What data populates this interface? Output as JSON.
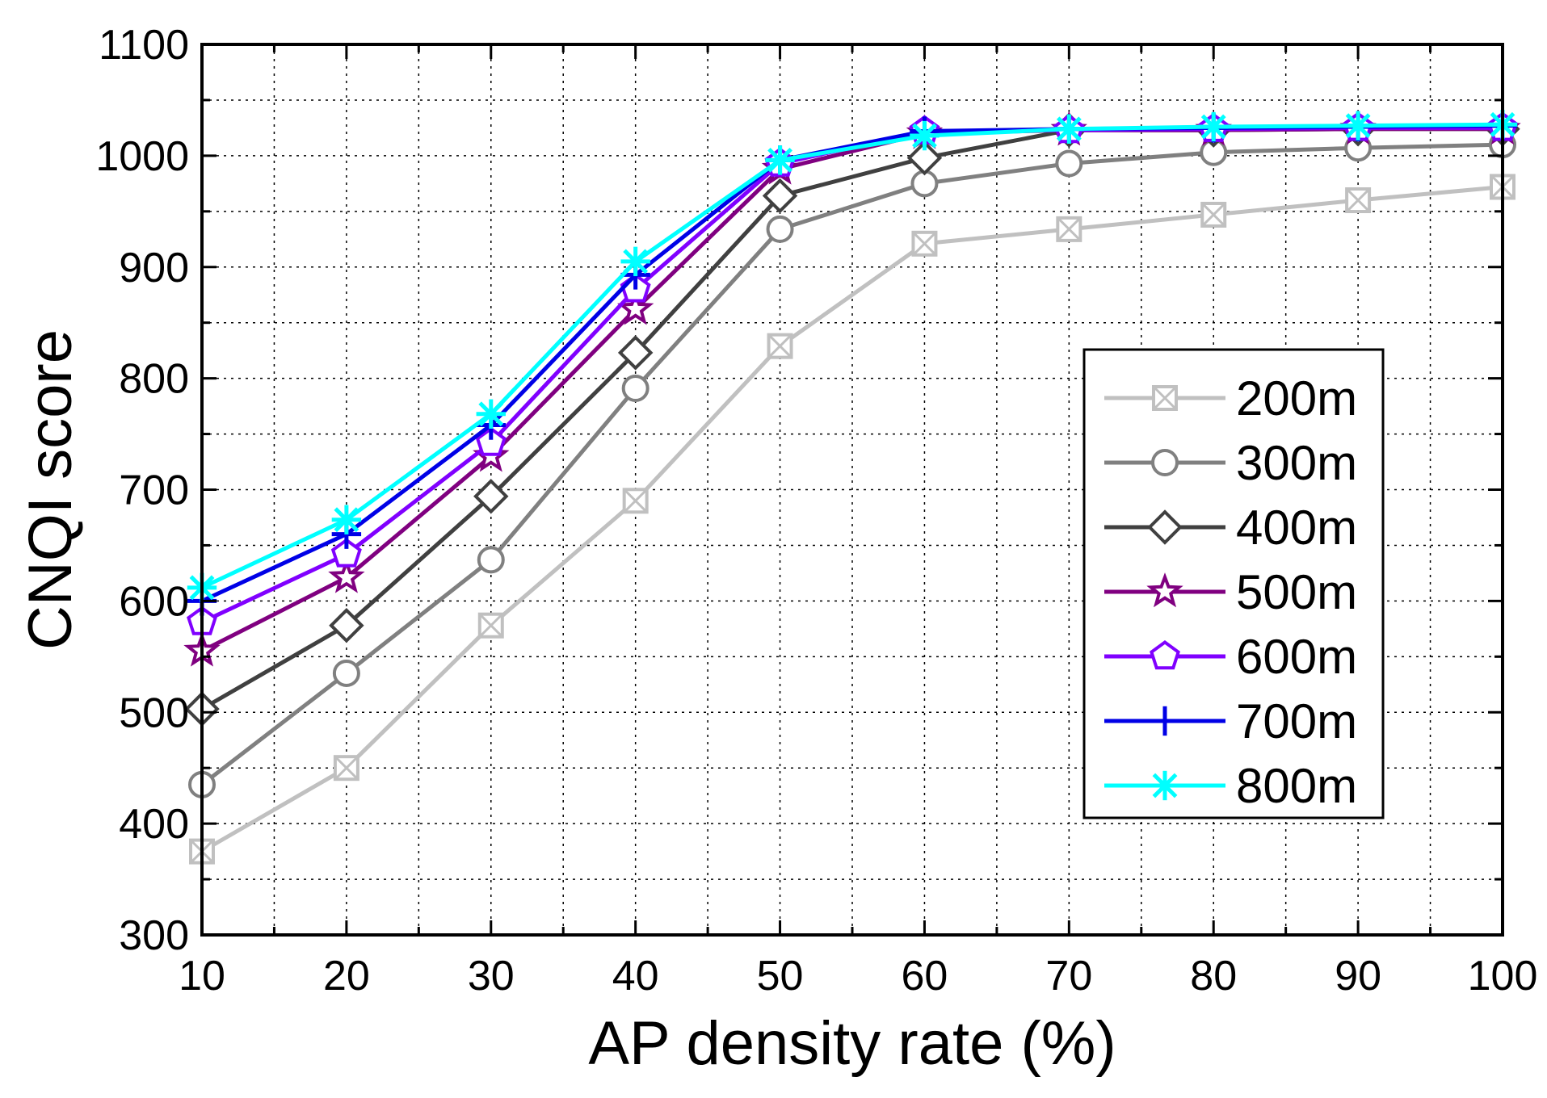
{
  "chart_data": {
    "type": "line",
    "title": "",
    "xlabel": "AP density rate (%)",
    "ylabel": "CNQI score",
    "x": [
      10,
      20,
      30,
      40,
      50,
      60,
      70,
      80,
      90,
      100
    ],
    "xlim": [
      10,
      100
    ],
    "ylim": [
      300,
      1100
    ],
    "xticks": [
      "10",
      "20",
      "30",
      "40",
      "50",
      "60",
      "70",
      "80",
      "90",
      "100"
    ],
    "yticks": [
      "300",
      "400",
      "500",
      "600",
      "700",
      "800",
      "900",
      "1000",
      "1100"
    ],
    "grid": true,
    "legend_position": "right",
    "series": [
      {
        "name": "200m",
        "color": "#c0c0c0",
        "marker": "square-x",
        "values": [
          375,
          450,
          578,
          690,
          829,
          921,
          934,
          947,
          960,
          972
        ]
      },
      {
        "name": "300m",
        "color": "#808080",
        "marker": "circle",
        "values": [
          435,
          535,
          637,
          791,
          934,
          975,
          993,
          1003,
          1007,
          1010
        ]
      },
      {
        "name": "400m",
        "color": "#404040",
        "marker": "diamond",
        "values": [
          503,
          578,
          694,
          823,
          964,
          998,
          1023,
          1023,
          1024,
          1024
        ]
      },
      {
        "name": "500m",
        "color": "#800080",
        "marker": "star",
        "values": [
          555,
          621,
          730,
          862,
          988,
          1020,
          1023,
          1023,
          1024,
          1024
        ]
      },
      {
        "name": "600m",
        "color": "#8000ff",
        "marker": "pentagon",
        "values": [
          581,
          642,
          742,
          880,
          993,
          1022,
          1023,
          1024,
          1025,
          1025
        ]
      },
      {
        "name": "700m",
        "color": "#0000e6",
        "marker": "plus",
        "values": [
          600,
          660,
          758,
          893,
          996,
          1022,
          1024,
          1025,
          1026,
          1027
        ]
      },
      {
        "name": "800m",
        "color": "#00ffff",
        "marker": "asterisk",
        "values": [
          612,
          673,
          768,
          905,
          996,
          1018,
          1024,
          1026,
          1027,
          1028
        ]
      }
    ]
  }
}
